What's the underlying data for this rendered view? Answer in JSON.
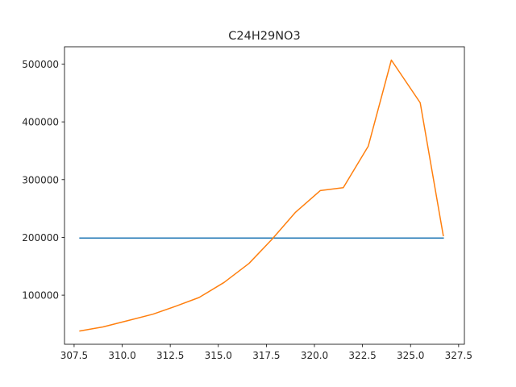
{
  "chart_data": {
    "type": "line",
    "title": "C24H29NO3",
    "xlabel": "",
    "ylabel": "",
    "xlim": [
      307.0,
      327.8
    ],
    "ylim": [
      15000,
      530000
    ],
    "grid": false,
    "x_ticks": [
      307.5,
      310.0,
      312.5,
      315.0,
      317.5,
      320.0,
      322.5,
      325.0,
      327.5
    ],
    "x_tick_labels": [
      "307.5",
      "310.0",
      "312.5",
      "315.0",
      "317.5",
      "320.0",
      "322.5",
      "325.0",
      "327.5"
    ],
    "y_ticks": [
      100000,
      200000,
      300000,
      400000,
      500000
    ],
    "y_tick_labels": [
      "100000",
      "200000",
      "300000",
      "400000",
      "500000"
    ],
    "series": [
      {
        "color": "#1f77b4",
        "x": [
          307.8,
          326.7
        ],
        "y": [
          199000,
          199000
        ]
      },
      {
        "color": "#ff7f0e",
        "x": [
          307.8,
          309.0,
          310.3,
          311.6,
          312.8,
          314.0,
          315.3,
          316.6,
          317.8,
          319.0,
          320.3,
          321.5,
          322.8,
          324.0,
          325.5,
          326.7
        ],
        "y": [
          38000,
          45000,
          56000,
          67000,
          81000,
          96000,
          122000,
          155000,
          197000,
          243000,
          281000,
          286000,
          358000,
          507000,
          433000,
          203000
        ]
      }
    ]
  }
}
